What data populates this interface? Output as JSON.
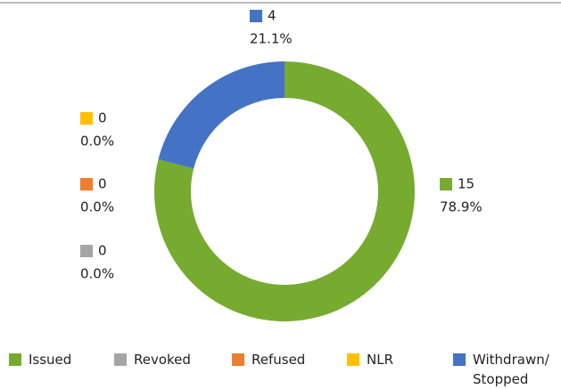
{
  "chart_data": {
    "type": "donut",
    "categories": [
      "Issued",
      "Revoked",
      "Refused",
      "NLR",
      "Withdrawn/ Stopped"
    ],
    "values": [
      15,
      0,
      0,
      0,
      4
    ],
    "percent_labels": [
      "78.9%",
      "0.0%",
      "0.0%",
      "0.0%",
      "21.1%"
    ],
    "colors": [
      "#76ab2f",
      "#a5a5a5",
      "#ed7d31",
      "#ffc000",
      "#4472c4"
    ],
    "legend": "bottom"
  }
}
